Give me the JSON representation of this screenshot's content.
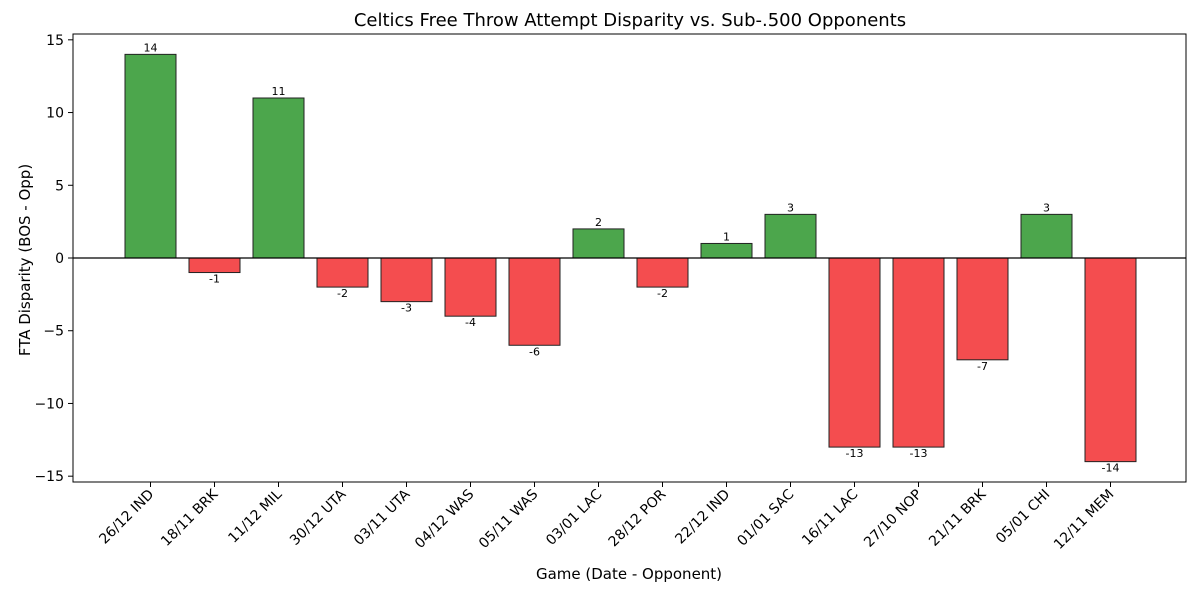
{
  "chart_data": {
    "type": "bar",
    "title": "Celtics Free Throw Attempt Disparity vs. Sub-.500 Opponents",
    "xlabel": "Game (Date - Opponent)",
    "ylabel": "FTA Disparity (BOS - Opp)",
    "categories": [
      "26/12 IND",
      "18/11 BRK",
      "11/12 MIL",
      "30/12 UTA",
      "03/11 UTA",
      "04/12 WAS",
      "05/11 WAS",
      "03/01 LAC",
      "28/12 POR",
      "22/12 IND",
      "01/01 SAC",
      "16/11 LAC",
      "27/10 NOP",
      "21/11 BRK",
      "05/01 CHI",
      "12/11 MEM"
    ],
    "values": [
      14,
      -1,
      11,
      -2,
      -3,
      -4,
      -6,
      2,
      -2,
      1,
      3,
      -13,
      -13,
      -7,
      3,
      -14
    ],
    "ylim": [
      -15.4,
      15.4
    ],
    "yticks": [
      -15,
      -10,
      -5,
      0,
      5,
      10,
      15
    ],
    "ytick_labels": [
      "−15",
      "−10",
      "−5",
      "0",
      "5",
      "10",
      "15"
    ],
    "grid": false,
    "colors": {
      "positive": "#4ca64c",
      "negative": "#f44d4f",
      "edge": "#222222",
      "zero_line": "#000000"
    }
  }
}
